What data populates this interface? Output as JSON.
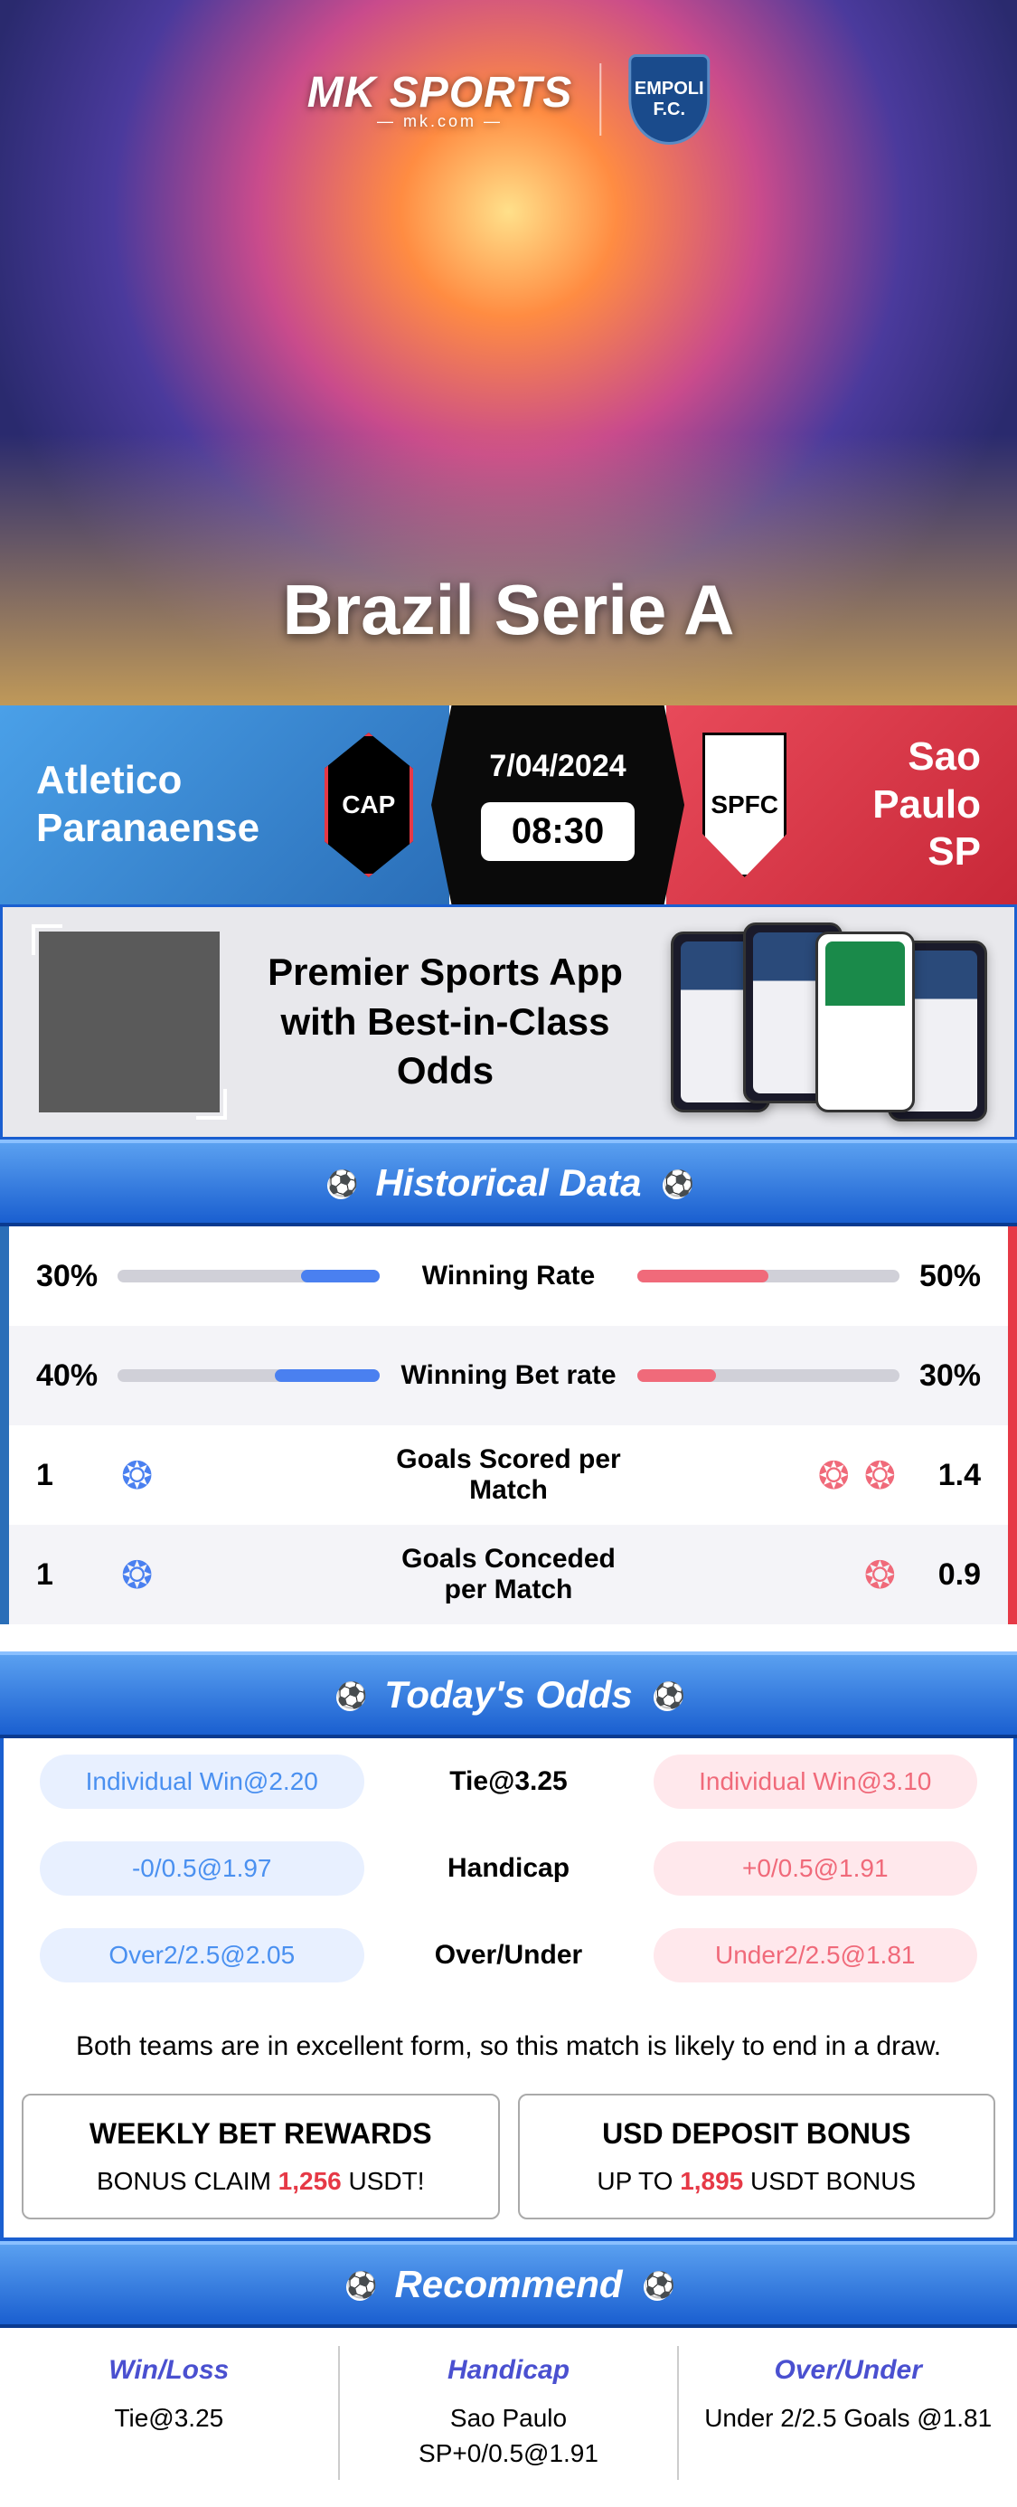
{
  "hero": {
    "brand_main": "MK SPORTS",
    "brand_sub": "— mk.com —",
    "club_badge": "EMPOLI F.C.",
    "league_title": "Brazil Serie A"
  },
  "match": {
    "home_name": "Atletico Paranaense",
    "home_badge": "CAP",
    "away_name": "Sao Paulo SP",
    "away_badge": "SPFC",
    "date": "7/04/2024",
    "time": "08:30"
  },
  "promo": {
    "headline": "Premier Sports App with Best-in-Class Odds"
  },
  "historical": {
    "header": "Historical Data",
    "rows": [
      {
        "label": "Winning Rate",
        "home_val": "30%",
        "home_pct": 30,
        "away_val": "50%",
        "away_pct": 50,
        "type": "bar"
      },
      {
        "label": "Winning Bet rate",
        "home_val": "40%",
        "home_pct": 40,
        "away_val": "30%",
        "away_pct": 30,
        "type": "bar"
      },
      {
        "label": "Goals Scored per Match",
        "home_val": "1",
        "home_goals": 1,
        "away_val": "1.4",
        "away_goals": 2,
        "type": "goals"
      },
      {
        "label": "Goals Conceded per Match",
        "home_val": "1",
        "home_goals": 1,
        "away_val": "0.9",
        "away_goals": 1,
        "type": "goals"
      }
    ]
  },
  "odds": {
    "header": "Today's Odds",
    "rows": [
      {
        "home": "Individual Win@2.20",
        "label": "Tie@3.25",
        "away": "Individual Win@3.10"
      },
      {
        "home": "-0/0.5@1.97",
        "label": "Handicap",
        "away": "+0/0.5@1.91"
      },
      {
        "home": "Over2/2.5@2.05",
        "label": "Over/Under",
        "away": "Under2/2.5@1.81"
      }
    ]
  },
  "analysis": "Both teams are in excellent form, so this match is likely to end in a draw.",
  "bonuses": [
    {
      "title": "WEEKLY BET REWARDS",
      "pre": "BONUS CLAIM ",
      "amount": "1,256",
      "post": " USDT!"
    },
    {
      "title": "USD DEPOSIT BONUS",
      "pre": "UP TO ",
      "amount": "1,895",
      "post": " USDT BONUS"
    }
  ],
  "recommend": {
    "header": "Recommend",
    "cols": [
      {
        "title": "Win/Loss",
        "value": "Tie@3.25"
      },
      {
        "title": "Handicap",
        "value": "Sao Paulo SP+0/0.5@1.91"
      },
      {
        "title": "Over/Under",
        "value": "Under 2/2.5 Goals @1.81"
      }
    ]
  },
  "colors": {
    "blue_primary": "#1a5fd0",
    "blue_accent": "#4a80f0",
    "red_accent": "#f06a7a",
    "red_primary": "#e63946"
  }
}
